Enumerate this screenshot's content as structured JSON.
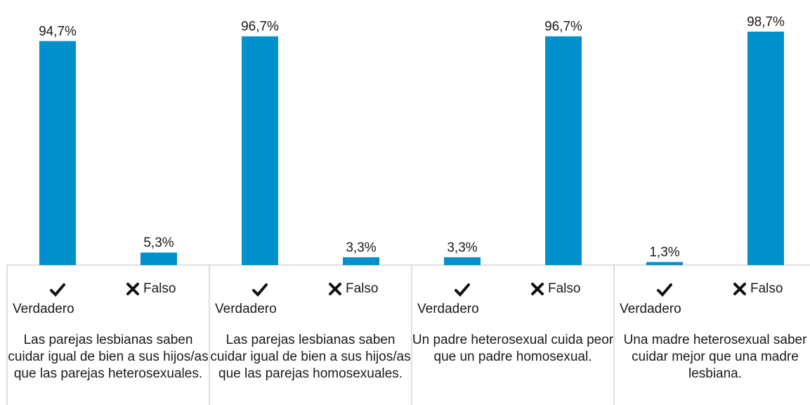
{
  "chart_data": {
    "type": "bar",
    "categories": [
      "Verdadero",
      "Falso",
      "Verdadero",
      "Falso",
      "Verdadero",
      "Falso",
      "Verdadero",
      "Falso"
    ],
    "values": [
      94.7,
      5.3,
      96.7,
      3.3,
      3.3,
      96.7,
      1.3,
      98.7
    ],
    "value_labels": [
      "94,7%",
      "5,3%",
      "96,7%",
      "3,3%",
      "3,3%",
      "96,7%",
      "1,3%",
      "98,7%"
    ],
    "groups": [
      "Las parejas lesbianas saben cuidar igual de bien a sus hijos/as que las parejas heterosexuales.",
      "Las parejas lesbianas saben cuidar igual de bien a sus hijos/as que las parejas homosexuales.",
      "Un padre heterosexual cuida peor que un padre homosexual.",
      "Una madre heterosexual saber cuidar mejor que una madre lesbiana."
    ],
    "color": "#0091cd",
    "ylim": [
      0,
      100
    ]
  }
}
